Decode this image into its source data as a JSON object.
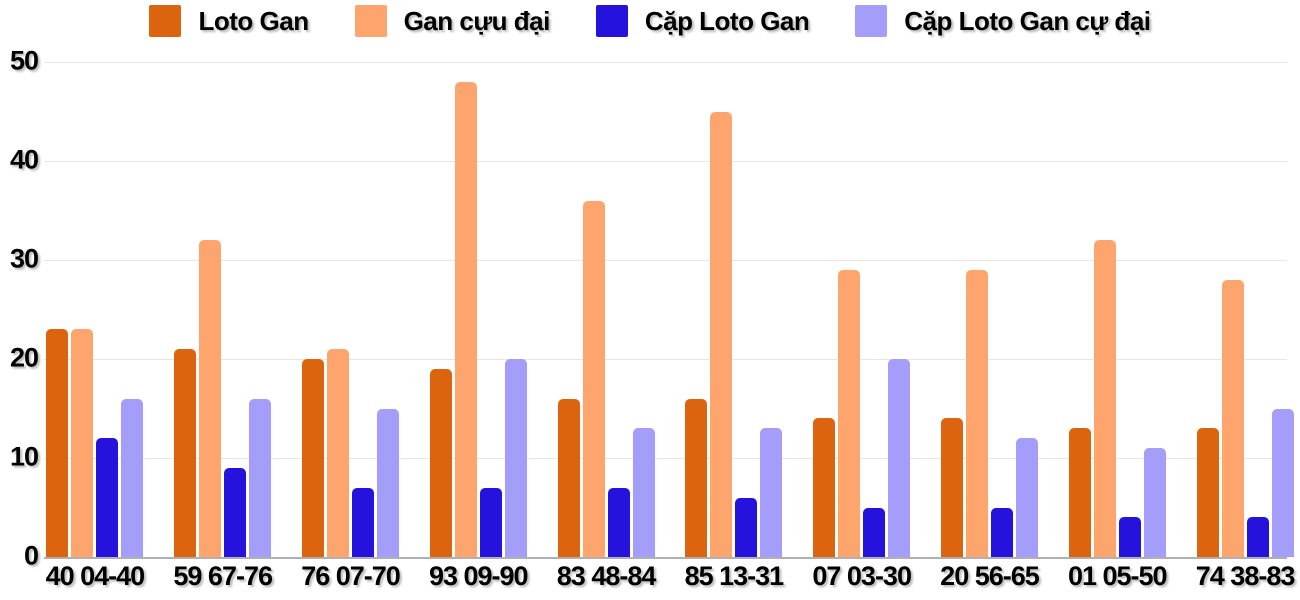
{
  "chart_data": {
    "type": "bar",
    "title": "",
    "xlabel": "",
    "ylabel": "",
    "categories": [
      "40 04-40",
      "59 67-76",
      "76 07-70",
      "93 09-90",
      "83 48-84",
      "85 13-31",
      "07 03-30",
      "20 56-65",
      "01 05-50",
      "74 38-83"
    ],
    "series": [
      {
        "name": "Loto Gan",
        "color": "#dc640e",
        "values": [
          23,
          21,
          20,
          19,
          16,
          16,
          14,
          14,
          13,
          13
        ]
      },
      {
        "name": "Gan cựu đại",
        "color": "#fda56c",
        "values": [
          23,
          32,
          21,
          48,
          36,
          45,
          29,
          29,
          32,
          28
        ]
      },
      {
        "name": "Cặp Loto Gan",
        "color": "#2512dc",
        "values": [
          12,
          9,
          7,
          7,
          7,
          6,
          5,
          5,
          4,
          4
        ]
      },
      {
        "name": "Cặp Loto Gan cự đại",
        "color": "#a49dfa",
        "values": [
          16,
          16,
          15,
          20,
          13,
          13,
          20,
          12,
          11,
          15
        ]
      }
    ],
    "ylim": [
      0,
      50
    ],
    "yticks": [
      0,
      10,
      20,
      30,
      40,
      50
    ],
    "grid": true,
    "legend_position": "top"
  },
  "colors": {
    "background": "#ffffff",
    "gridline": "#e6e6e6",
    "axis_line": "#b0b0b0",
    "text": "#000000"
  }
}
